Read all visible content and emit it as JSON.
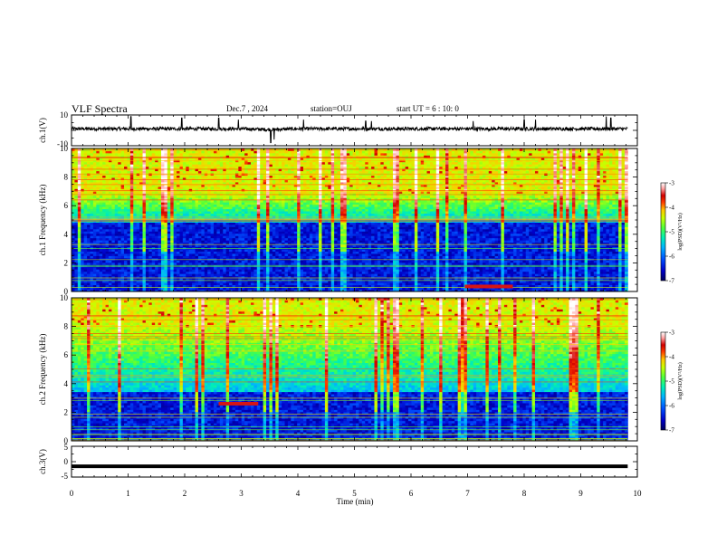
{
  "header": {
    "title": "VLF Spectra",
    "date": "Dec.7 , 2024",
    "station": "station=OUJ",
    "start_ut": "start UT =  6 : 10: 0"
  },
  "colors": {
    "colormap": [
      "#00005a",
      "#0000c8",
      "#0050ff",
      "#00b4ff",
      "#00f0b4",
      "#50ff3c",
      "#c8ff00",
      "#ffc800",
      "#ff3c00",
      "#d00000",
      "#ffa0a0",
      "#ffffff"
    ]
  },
  "chart_data": [
    {
      "type": "line",
      "name": "ch1-waveform",
      "ylabel": "ch.1(V)",
      "ylim": [
        -10,
        10
      ],
      "yticks": [
        "10",
        "-10"
      ],
      "x": [
        0,
        0.5,
        1,
        1.5,
        2,
        2.5,
        3,
        3.5,
        4,
        4.5,
        5,
        5.5,
        6,
        6.5,
        7,
        7.5,
        8,
        8.5,
        9,
        9.5,
        9.83
      ],
      "values": [
        1,
        1,
        1,
        1,
        1,
        1,
        1,
        0.5,
        1,
        1,
        1,
        1,
        1,
        1,
        1,
        1,
        1,
        1,
        1,
        1,
        1
      ],
      "spikes": [
        [
          1.05,
          9
        ],
        [
          1.95,
          8
        ],
        [
          2.6,
          8
        ],
        [
          2.95,
          7
        ],
        [
          3.52,
          -8
        ],
        [
          3.58,
          -6
        ],
        [
          4.1,
          7
        ],
        [
          5.2,
          6
        ],
        [
          5.3,
          6
        ],
        [
          7.1,
          6
        ],
        [
          8.0,
          7
        ],
        [
          8.2,
          7
        ],
        [
          9.45,
          9
        ],
        [
          9.53,
          8
        ]
      ]
    },
    {
      "type": "heatmap",
      "name": "ch1-spectrogram",
      "ylabel": "ch.1 Frequency (kHz)",
      "ylim": [
        0,
        10
      ],
      "yticks": [
        "0",
        "2",
        "4",
        "6",
        "8",
        "10"
      ],
      "colorbar_label": "log(PSD)(V²/Hz)",
      "colorbar_ticks": [
        "-3",
        "-4",
        "-5",
        "-6",
        "-7"
      ],
      "clim": [
        -7,
        -3
      ],
      "broadband_upper_khz": 6.8,
      "noise_floor_khz": 4.8,
      "event": {
        "t_start": 6.95,
        "t_end": 7.8,
        "f_khz": 0.35
      }
    },
    {
      "type": "heatmap",
      "name": "ch2-spectrogram",
      "ylabel": "ch.2 Frequency (kHz)",
      "ylim": [
        0,
        10
      ],
      "yticks": [
        "0",
        "2",
        "4",
        "6",
        "8",
        "10"
      ],
      "colorbar_label": "log(PSD)(V²/Hz)",
      "colorbar_ticks": [
        "-3",
        "-4",
        "-5",
        "-6",
        "-7"
      ],
      "clim": [
        -7,
        -3
      ],
      "broadband_upper_khz": 8.0,
      "noise_floor_khz": 3.5,
      "event": {
        "t_start": 2.6,
        "t_end": 3.3,
        "f_khz": 2.6
      }
    },
    {
      "type": "line",
      "name": "ch3-waveform",
      "ylabel": "ch.3(V)",
      "ylim": [
        -5,
        5
      ],
      "yticks": [
        "5",
        "0",
        "-5"
      ],
      "x": [
        0,
        9.83
      ],
      "values": [
        -1.5,
        -1.5
      ]
    }
  ],
  "xaxis": {
    "label": "Time (min)",
    "range": [
      0,
      10
    ],
    "ticks": [
      "0",
      "1",
      "2",
      "3",
      "4",
      "5",
      "6",
      "7",
      "8",
      "9",
      "10"
    ],
    "data_end_min": 9.83
  }
}
